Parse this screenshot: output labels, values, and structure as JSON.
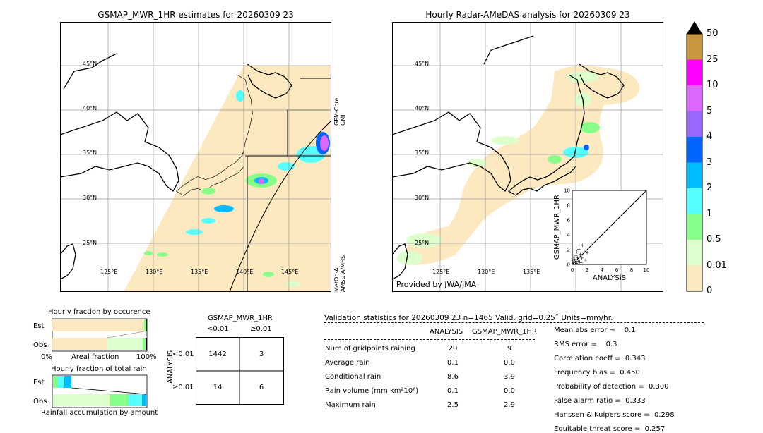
{
  "left_map": {
    "title": "GSMAP_MWR_1HR estimates for 20260309 23",
    "lat_labels": [
      "45°N",
      "40°N",
      "35°N",
      "30°N",
      "25°N"
    ],
    "lon_labels": [
      "125°E",
      "130°E",
      "135°E",
      "140°E",
      "145°E"
    ],
    "sensor_label_top": "GPM-Core\nGMI",
    "sensor_label_bottom": "MetOp-A\nAMSU-A/MHS"
  },
  "right_map": {
    "title": "Hourly Radar-AMeDAS analysis for 20260309 23",
    "lat_labels": [
      "45°N",
      "40°N",
      "35°N",
      "30°N",
      "25°N"
    ],
    "lon_labels": [
      "125°E",
      "130°E",
      "135°E"
    ],
    "credit": "Provided by JWA/JMA"
  },
  "colorbar": {
    "labels": [
      "50",
      "25",
      "10",
      "5",
      "4",
      "3",
      "2",
      "1",
      "0.5",
      "0.01",
      "0"
    ],
    "colors": [
      "#c8963c",
      "#ff00ff",
      "#dd66ff",
      "#9966ff",
      "#0066ff",
      "#00bbff",
      "#55ffff",
      "#88ff88",
      "#ddffcc",
      "#fde9c0"
    ]
  },
  "chart_data": [
    {
      "type": "scatter",
      "title": "",
      "xlabel": "ANALYSIS",
      "ylabel": "GSMAP_MWR_1HR",
      "xlim": [
        0,
        10
      ],
      "ylim": [
        0,
        10
      ],
      "x_ticks": [
        "0",
        "2",
        "4",
        "6",
        "8",
        "10"
      ],
      "y_ticks": [
        "0",
        "2",
        "4",
        "6",
        "8",
        "10"
      ],
      "points": [
        [
          0.2,
          0.1
        ],
        [
          0.4,
          0.3
        ],
        [
          0.6,
          0.2
        ],
        [
          0.8,
          0.5
        ],
        [
          1.0,
          0.4
        ],
        [
          1.2,
          0.3
        ],
        [
          0.3,
          0.7
        ],
        [
          0.5,
          1.2
        ],
        [
          0.7,
          0.9
        ],
        [
          1.1,
          1.4
        ],
        [
          0.9,
          2.1
        ],
        [
          1.4,
          2.6
        ],
        [
          1.6,
          2.0
        ],
        [
          2.0,
          1.6
        ],
        [
          0.1,
          0.4
        ],
        [
          1.8,
          0.6
        ],
        [
          2.5,
          2.9
        ],
        [
          0.6,
          1.7
        ],
        [
          1.3,
          0.9
        ],
        [
          0.2,
          1.0
        ]
      ]
    },
    {
      "type": "bar",
      "title": "Hourly fraction by occurence",
      "categories": [
        "Est",
        "Obs"
      ],
      "xlabels": [
        "0%",
        "Areal fraction",
        "100%"
      ]
    },
    {
      "type": "bar",
      "title": "Hourly fraction of total rain",
      "categories": [
        "Est",
        "Obs"
      ],
      "xlabels": [
        "Rainfall accumulation by amount"
      ]
    },
    {
      "type": "table",
      "title": "GSMAP_MWR_1HR",
      "col_labels": [
        "<0.01",
        "≥0.01"
      ],
      "row_axis_label": "ANALYSIS",
      "row_labels": [
        "<0.01",
        "≥0.01"
      ],
      "cells": [
        [
          "1442",
          "3"
        ],
        [
          "14",
          "6"
        ]
      ]
    }
  ],
  "validation": {
    "header": "Validation statistics for 20260309 23  n=1465 Valid. grid=0.25˚ Units=mm/hr.",
    "col_analysis": "ANALYSIS",
    "col_gsmap": "GSMAP_MWR_1HR",
    "rows": [
      {
        "label": "Num of gridpoints raining",
        "analysis": "20",
        "gsmap": "9"
      },
      {
        "label": "Average rain",
        "analysis": "0.1",
        "gsmap": "0.0"
      },
      {
        "label": "Conditional rain",
        "analysis": "8.6",
        "gsmap": "3.9"
      },
      {
        "label": "Rain volume (mm km²10⁶)",
        "analysis": "0.1",
        "gsmap": "0.0"
      },
      {
        "label": "Maximum rain",
        "analysis": "2.5",
        "gsmap": "2.9"
      }
    ],
    "scores": [
      "Mean abs error =    0.1",
      "RMS error =    0.3",
      "Correlation coeff =  0.343",
      "Frequency bias =  0.450",
      "Probability of detection =  0.300",
      "False alarm ratio =  0.333",
      "Hanssen & Kuipers score =  0.298",
      "Equitable threat score =  0.257"
    ]
  }
}
